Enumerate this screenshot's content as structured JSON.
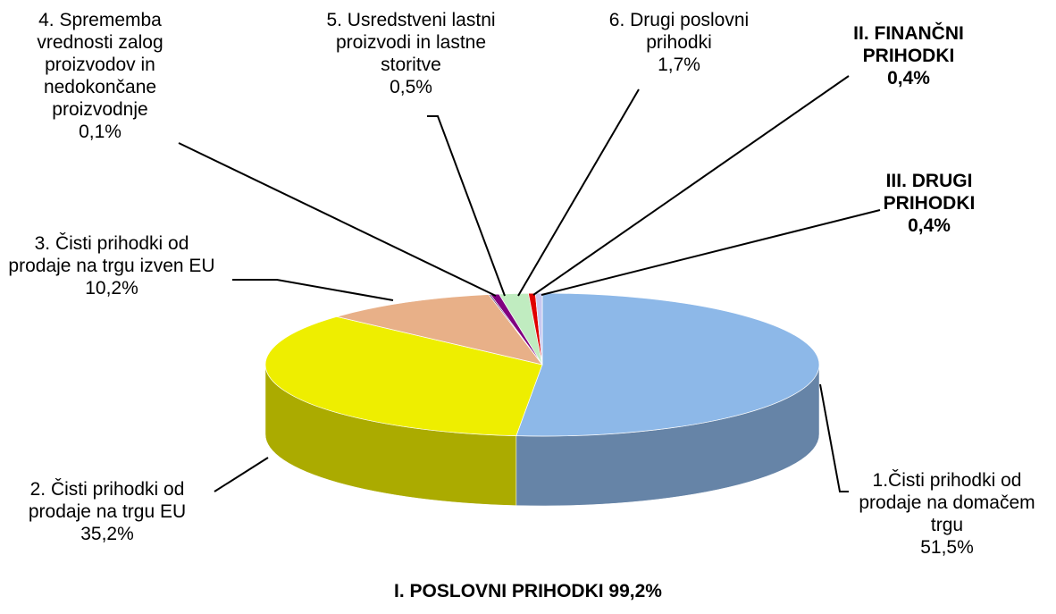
{
  "chart_data": {
    "type": "pie3d",
    "title": "I. POSLOVNI PRIHODKI 99,2%",
    "categories": [
      "1.Čisti prihodki od prodaje na domačem trgu",
      "2. Čisti prihodki od prodaje na trgu EU",
      "3. Čisti prihodki od prodaje na trgu izven EU",
      "4. Sprememba vrednosti zalog proizvodov in nedokončane proizvodnje",
      "5. Usredstveni lastni proizvodi in lastne storitve",
      "6. Drugi poslovni prihodki",
      "II. FINANČNI PRIHODKI",
      "III. DRUGI PRIHODKI"
    ],
    "values": [
      51.5,
      35.2,
      10.2,
      0.1,
      0.5,
      1.7,
      0.4,
      0.4
    ],
    "value_labels": [
      "51,5%",
      "35,2%",
      "10,2%",
      "0,1%",
      "0,5%",
      "1,7%",
      "0,4%",
      "0,4%"
    ],
    "colors": [
      "#8db8e8",
      "#eeee00",
      "#e8b088",
      "#4a2060",
      "#800080",
      "#c0ecc0",
      "#e00000",
      "#c8c8f0"
    ]
  }
}
